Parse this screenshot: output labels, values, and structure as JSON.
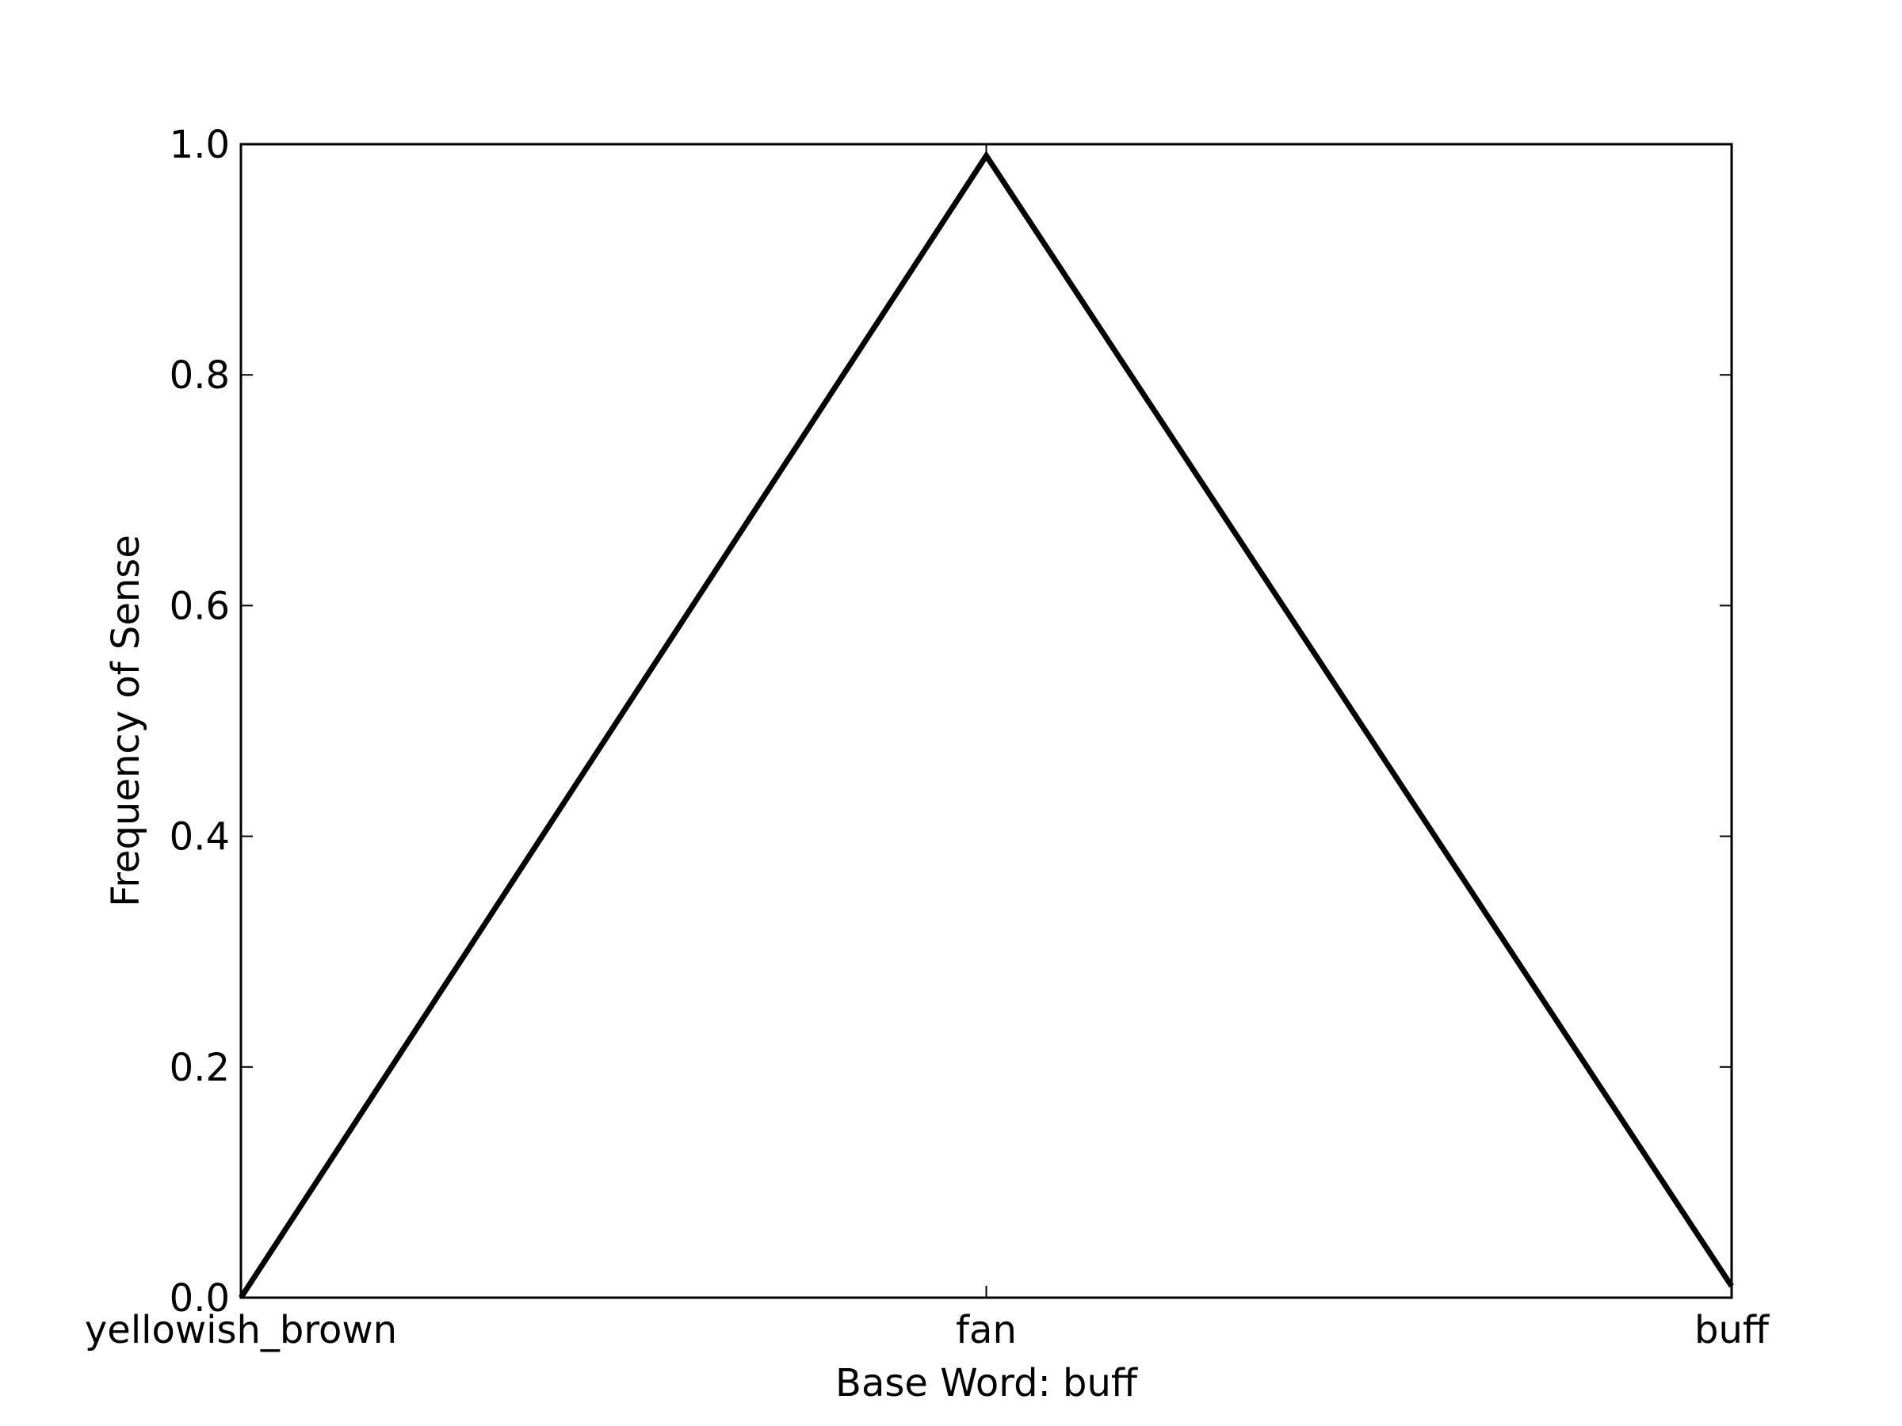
{
  "chart_data": {
    "type": "line",
    "title": "",
    "xlabel": "Base Word: buff",
    "ylabel": "Frequency of Sense",
    "categories": [
      "yellowish_brown",
      "fan",
      "buff"
    ],
    "series": [
      {
        "values": [
          0.0,
          0.99,
          0.01
        ]
      }
    ],
    "ylim": [
      0.0,
      1.0
    ],
    "yticks": [
      "0.0",
      "0.2",
      "0.4",
      "0.6",
      "0.8",
      "1.0"
    ],
    "grid": false,
    "legend": "none",
    "line_color": "#000000"
  }
}
